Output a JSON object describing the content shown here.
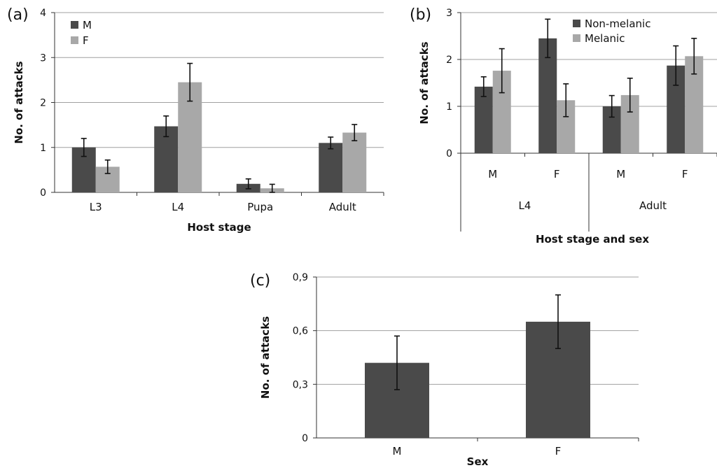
{
  "chart_data": [
    {
      "panel": "(a)",
      "type": "bar",
      "categories": [
        "L3",
        "L4",
        "Pupa",
        "Adult"
      ],
      "series": [
        {
          "name": "M",
          "values": [
            1.0,
            1.47,
            0.19,
            1.1
          ],
          "errors": [
            0.2,
            0.23,
            0.11,
            0.13
          ],
          "color": "#4a4a4a"
        },
        {
          "name": "F",
          "values": [
            0.57,
            2.45,
            0.09,
            1.33
          ],
          "errors": [
            0.15,
            0.42,
            0.09,
            0.18
          ],
          "color": "#a8a8a8"
        }
      ],
      "xlabel": "Host stage",
      "ylabel": "No. of attacks",
      "ylim": [
        0,
        4
      ],
      "yticks": [
        "0",
        "1",
        "2",
        "3",
        "4"
      ],
      "grid": true,
      "legend": "top-left"
    },
    {
      "panel": "(b)",
      "type": "bar",
      "categories": [
        "M",
        "F",
        "M",
        "F"
      ],
      "groups": [
        "L4",
        "Adult"
      ],
      "series": [
        {
          "name": "Non-melanic",
          "values": [
            1.42,
            2.45,
            1.0,
            1.87
          ],
          "errors": [
            0.21,
            0.41,
            0.23,
            0.42
          ],
          "color": "#4a4a4a"
        },
        {
          "name": "Melanic",
          "values": [
            1.76,
            1.13,
            1.24,
            2.07
          ],
          "errors": [
            0.47,
            0.35,
            0.36,
            0.38
          ],
          "color": "#a8a8a8"
        }
      ],
      "xlabel": "Host stage and sex",
      "ylabel": "No. of attacks",
      "ylim": [
        0,
        3
      ],
      "yticks": [
        "0",
        "1",
        "2",
        "3"
      ],
      "grid": true,
      "legend": "top-center"
    },
    {
      "panel": "(c)",
      "type": "bar",
      "categories": [
        "M",
        "F"
      ],
      "series": [
        {
          "name": "",
          "values": [
            0.42,
            0.65
          ],
          "errors": [
            0.15,
            0.15
          ],
          "color": "#4a4a4a"
        }
      ],
      "xlabel": "Sex",
      "ylabel": "No. of attacks",
      "ylim": [
        0,
        0.9
      ],
      "yticks": [
        "0",
        "0,3",
        "0,6",
        "0,9"
      ],
      "grid": true
    }
  ]
}
